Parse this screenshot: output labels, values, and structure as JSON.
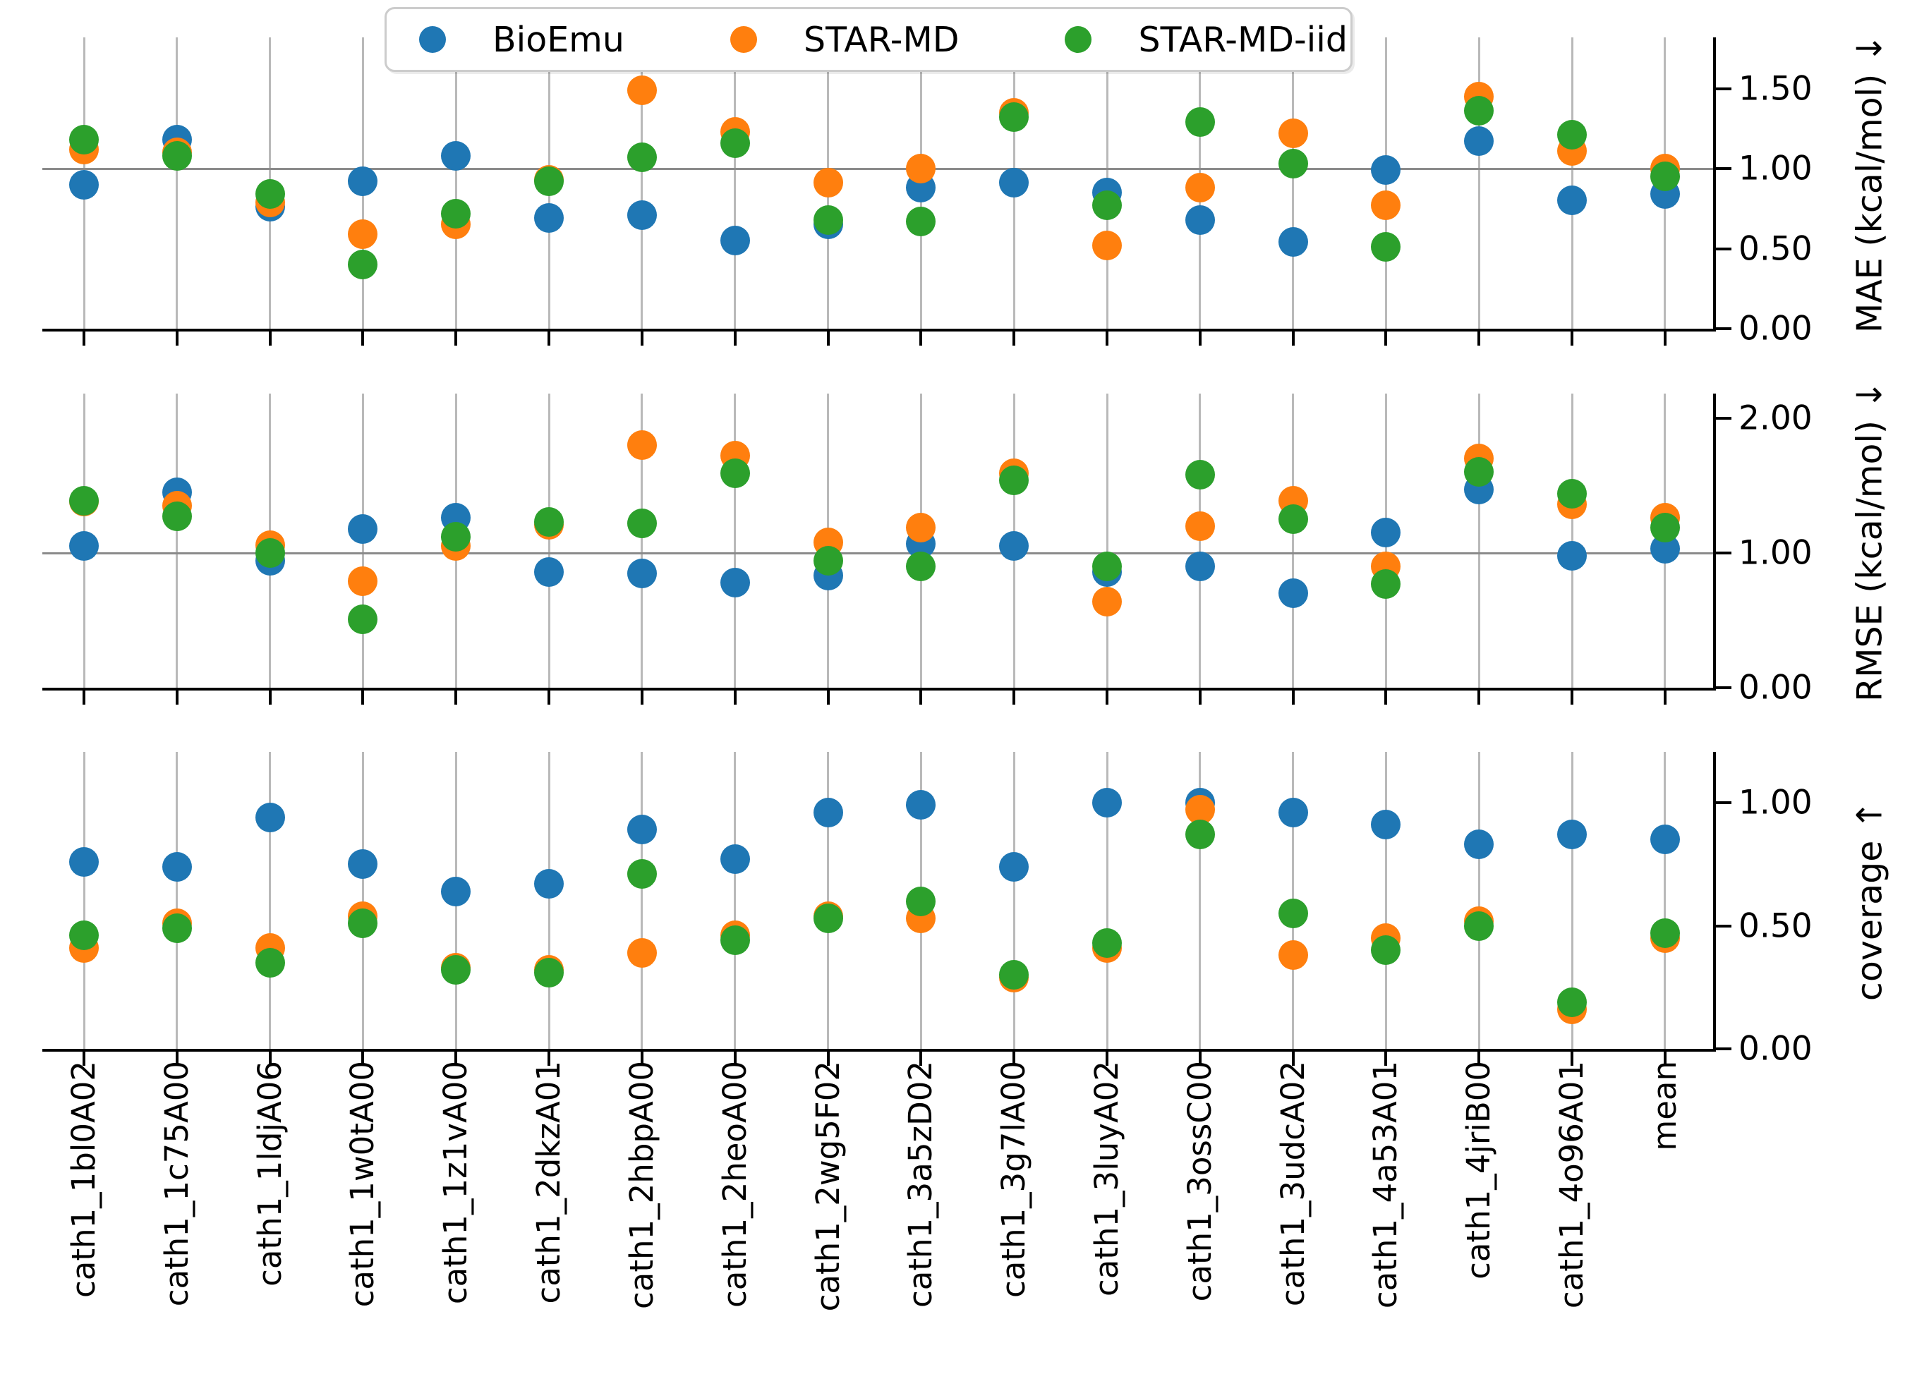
{
  "legend": {
    "items": [
      {
        "label": "BioEmu",
        "color": "#1f77b4"
      },
      {
        "label": "STAR-MD",
        "color": "#ff7f0e"
      },
      {
        "label": "STAR-MD-iid",
        "color": "#2ca02c"
      }
    ]
  },
  "chart_data": {
    "type": "scatter",
    "categories": [
      "cath1_1bl0A02",
      "cath1_1c75A00",
      "cath1_1ldjA06",
      "cath1_1w0tA00",
      "cath1_1z1vA00",
      "cath1_2dkzA01",
      "cath1_2hbpA00",
      "cath1_2heoA00",
      "cath1_2wg5F02",
      "cath1_3a5zD02",
      "cath1_3g7lA00",
      "cath1_3luyA02",
      "cath1_3ossC00",
      "cath1_3udcA02",
      "cath1_4a53A01",
      "cath1_4jriB00",
      "cath1_4o96A01",
      "mean"
    ],
    "grid": "vertical-per-category",
    "legend_position": "top-center",
    "panels": [
      {
        "ylabel": "MAE (kcal/mol)  ↓",
        "ylim": [
          0,
          1.82
        ],
        "yticks": [
          0.0,
          0.5,
          1.0,
          1.5
        ],
        "ytick_labels": [
          "0.00",
          "0.50",
          "1.00",
          "1.50"
        ],
        "refline": 1.0,
        "series": [
          {
            "name": "BioEmu",
            "color": "#1f77b4",
            "values": [
              0.9,
              1.18,
              0.76,
              0.92,
              1.08,
              0.69,
              0.71,
              0.55,
              0.65,
              0.88,
              0.91,
              0.85,
              0.68,
              0.54,
              0.99,
              1.17,
              0.8,
              0.84
            ]
          },
          {
            "name": "STAR-MD",
            "color": "#ff7f0e",
            "values": [
              1.12,
              1.1,
              0.79,
              0.59,
              0.65,
              0.93,
              1.49,
              1.23,
              0.91,
              1.0,
              1.35,
              0.52,
              0.88,
              1.22,
              0.77,
              1.45,
              1.11,
              1.0
            ]
          },
          {
            "name": "STAR-MD-iid",
            "color": "#2ca02c",
            "values": [
              1.18,
              1.08,
              0.84,
              0.4,
              0.72,
              0.92,
              1.07,
              1.16,
              0.68,
              0.67,
              1.32,
              0.77,
              1.29,
              1.03,
              0.51,
              1.36,
              1.21,
              0.95
            ]
          }
        ]
      },
      {
        "ylabel": "RMSE (kcal/mol)  ↓",
        "ylim": [
          0,
          2.18
        ],
        "yticks": [
          0.0,
          1.0,
          2.0
        ],
        "ytick_labels": [
          "0.00",
          "1.00",
          "2.00"
        ],
        "refline": 1.0,
        "series": [
          {
            "name": "BioEmu",
            "color": "#1f77b4",
            "values": [
              1.05,
              1.45,
              0.94,
              1.18,
              1.26,
              0.86,
              0.85,
              0.78,
              0.83,
              1.07,
              1.05,
              0.86,
              0.9,
              0.7,
              1.15,
              1.47,
              0.98,
              1.03
            ]
          },
          {
            "name": "STAR-MD",
            "color": "#ff7f0e",
            "values": [
              1.38,
              1.35,
              1.06,
              0.79,
              1.05,
              1.21,
              1.8,
              1.72,
              1.08,
              1.19,
              1.59,
              0.64,
              1.2,
              1.39,
              0.9,
              1.7,
              1.36,
              1.26
            ]
          },
          {
            "name": "STAR-MD-iid",
            "color": "#2ca02c",
            "values": [
              1.39,
              1.27,
              1.0,
              0.51,
              1.12,
              1.23,
              1.22,
              1.59,
              0.94,
              0.9,
              1.54,
              0.9,
              1.58,
              1.25,
              0.77,
              1.6,
              1.44,
              1.19
            ]
          }
        ]
      },
      {
        "ylabel": "coverage ↑",
        "ylim": [
          0,
          1.21
        ],
        "yticks": [
          0.0,
          0.5,
          1.0
        ],
        "ytick_labels": [
          "0.00",
          "0.50",
          "1.00"
        ],
        "refline": null,
        "series": [
          {
            "name": "BioEmu",
            "color": "#1f77b4",
            "values": [
              0.76,
              0.74,
              0.94,
              0.75,
              0.64,
              0.67,
              0.89,
              0.77,
              0.96,
              0.99,
              0.74,
              1.0,
              1.0,
              0.96,
              0.91,
              0.83,
              0.87,
              0.85
            ]
          },
          {
            "name": "STAR-MD",
            "color": "#ff7f0e",
            "values": [
              0.41,
              0.51,
              0.41,
              0.54,
              0.33,
              0.32,
              0.39,
              0.46,
              0.54,
              0.53,
              0.29,
              0.41,
              0.97,
              0.38,
              0.45,
              0.52,
              0.16,
              0.45
            ]
          },
          {
            "name": "STAR-MD-iid",
            "color": "#2ca02c",
            "values": [
              0.46,
              0.49,
              0.35,
              0.51,
              0.32,
              0.31,
              0.71,
              0.44,
              0.53,
              0.6,
              0.3,
              0.43,
              0.87,
              0.55,
              0.4,
              0.5,
              0.19,
              0.47
            ]
          }
        ]
      }
    ]
  }
}
